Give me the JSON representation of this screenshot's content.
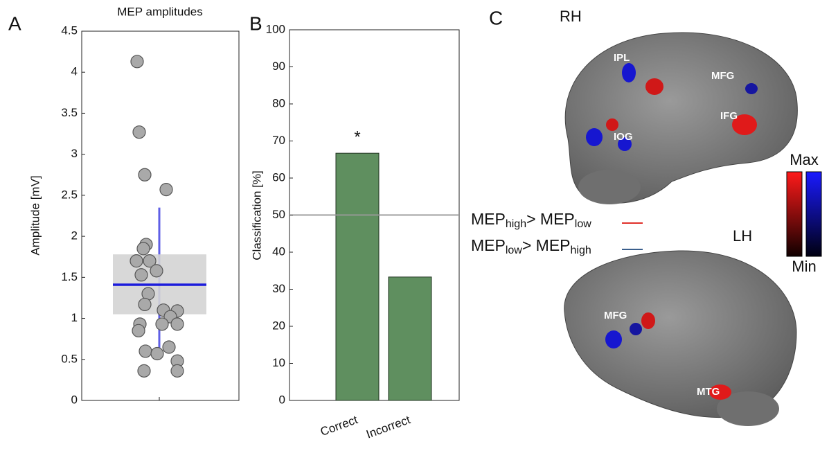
{
  "chart_data": [
    {
      "type": "scatter",
      "panel": "A",
      "title": "MEP amplitudes",
      "y_label": "Amplitude [mV]",
      "values": [
        4.13,
        3.27,
        2.75,
        2.57,
        1.9,
        1.85,
        1.7,
        1.7,
        1.58,
        1.53,
        1.3,
        1.17,
        1.1,
        1.09,
        1.02,
        0.93,
        0.93,
        0.93,
        0.85,
        0.65,
        0.6,
        0.57,
        0.48,
        0.36,
        0.36
      ],
      "color": "#a9a9a9",
      "box": {
        "q1": 1.05,
        "median": 1.41,
        "q3": 1.78,
        "whisker_low": 0.62,
        "whisker_high": 2.35,
        "color": "#d4d4d4",
        "line_color": "#1c1cdc"
      },
      "ylim": [
        0,
        4.5
      ],
      "yticks": [
        0,
        0.5,
        1,
        1.5,
        2,
        2.5,
        3,
        3.5,
        4,
        4.5
      ]
    },
    {
      "type": "bar",
      "panel": "B",
      "y_label": "Classification [%]",
      "categories": [
        "Correct",
        "Incorrect"
      ],
      "values": [
        66.7,
        33.3
      ],
      "color": "#5f8f5f",
      "annotation": "*",
      "reference_line": 50,
      "ylim": [
        0,
        100
      ],
      "yticks": [
        0,
        10,
        20,
        30,
        40,
        50,
        60,
        70,
        80,
        90,
        100
      ]
    }
  ],
  "panel_c": {
    "panel": "C",
    "top_label": "RH",
    "bottom_label": "LH",
    "top_regions": [
      "IPL",
      "MFG",
      "IFG",
      "IOG"
    ],
    "bottom_regions": [
      "MFG",
      "MTG"
    ],
    "legend": [
      {
        "base": "MEP",
        "sub1": "high",
        "mid": "> MEP",
        "sub2": "low",
        "color": "#e0302a"
      },
      {
        "base": "MEP",
        "sub1": "low",
        "mid": "> MEP",
        "sub2": "high",
        "color": "#3a5e8c"
      }
    ],
    "scale_max": "Max",
    "scale_min": "Min"
  }
}
